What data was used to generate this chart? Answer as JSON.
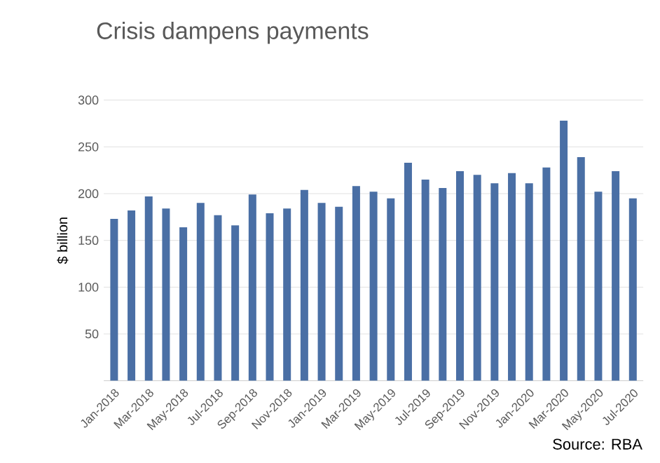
{
  "chart_data": {
    "type": "bar",
    "title": "Crisis dampens payments",
    "ylabel": "$ billion",
    "categories": [
      "Jan-2018",
      null,
      "Mar-2018",
      null,
      "May-2018",
      null,
      "Jul-2018",
      null,
      "Sep-2018",
      null,
      "Nov-2018",
      null,
      "Jan-2019",
      null,
      "Mar-2019",
      null,
      "May-2019",
      null,
      "Jul-2019",
      null,
      "Sep-2019",
      null,
      "Nov-2019",
      null,
      "Jan-2020",
      null,
      "Mar-2020",
      null,
      "May-2020",
      null,
      "Jul-2020"
    ],
    "values": [
      173,
      182,
      197,
      184,
      164,
      190,
      177,
      166,
      199,
      179,
      184,
      204,
      190,
      186,
      208,
      202,
      195,
      233,
      215,
      206,
      224,
      220,
      211,
      222,
      211,
      228,
      278,
      239,
      202,
      224,
      195
    ],
    "color": "#4a6fa5",
    "ylim": [
      0,
      300
    ],
    "yticks": [
      50,
      100,
      150,
      200,
      250,
      300
    ],
    "grid": "y",
    "annotations": [
      "Source: RBA"
    ]
  }
}
